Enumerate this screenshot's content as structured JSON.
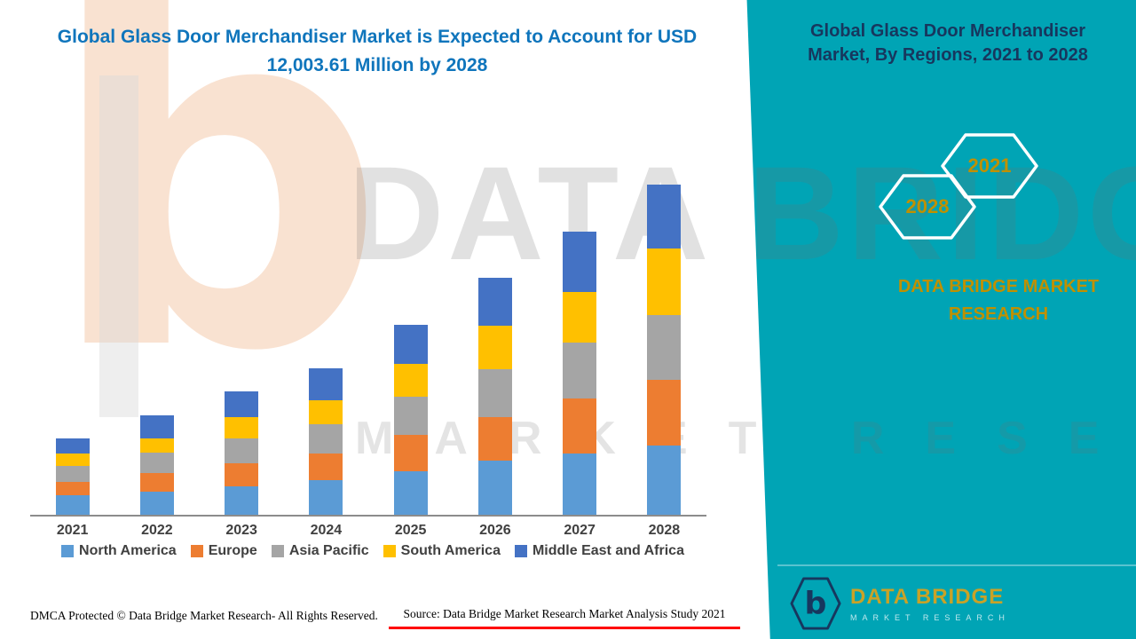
{
  "title": {
    "line1": "Global Glass Door Merchandiser Market is Expected to Account for USD",
    "line2": "12,003.61 Million by 2028"
  },
  "right_panel": {
    "heading": "Global Glass Door Merchandiser Market, By Regions, 2021 to 2028",
    "badge_years": [
      "2028",
      "2021"
    ],
    "caption": "DATA BRIDGE MARKET RESEARCH",
    "logo": {
      "brand": "DATA BRIDGE",
      "sub": "MARKET RESEARCH",
      "monogram": "b"
    }
  },
  "watermark": {
    "monogram": "b",
    "line1": "DATA BRIDGE",
    "line2": "MARKET RESEARCH"
  },
  "footer": {
    "dmca": "DMCA Protected © Data Bridge Market Research- All Rights Reserved.",
    "source": "Source: Data Bridge Market Research Market Analysis Study 2021"
  },
  "colors": {
    "teal_panel": "#00A4B5",
    "gold_text": "#BF9000",
    "navy_heading": "#17375E",
    "title_blue": "#0F75BC",
    "source_underline_red": "#FF0000"
  },
  "chart_data": {
    "type": "bar",
    "stacked": true,
    "title": "Global Glass Door Merchandiser Market is Expected to Account for USD 12,003.61 Million by 2028",
    "xlabel": "",
    "ylabel": "",
    "legend_position": "bottom",
    "grid": false,
    "value_axis_visible": false,
    "ylim": [
      0,
      400
    ],
    "units": "relative size (estimated from bar pixel heights; no value axis shown)",
    "categories": [
      "2021",
      "2022",
      "2023",
      "2024",
      "2025",
      "2026",
      "2027",
      "2028"
    ],
    "series": [
      {
        "name": "North America",
        "color": "#5B9BD5",
        "values": [
          22,
          27,
          33,
          40,
          50,
          62,
          70,
          80
        ]
      },
      {
        "name": "Europe",
        "color": "#ED7D31",
        "values": [
          16,
          21,
          26,
          30,
          42,
          50,
          64,
          75
        ]
      },
      {
        "name": "Asia Pacific",
        "color": "#A5A5A5",
        "values": [
          18,
          23,
          29,
          34,
          44,
          55,
          64,
          75
        ]
      },
      {
        "name": "South America",
        "color": "#FFC000",
        "values": [
          14,
          17,
          24,
          28,
          38,
          50,
          58,
          76
        ]
      },
      {
        "name": "Middle East and Africa",
        "color": "#4472C4",
        "values": [
          18,
          26,
          30,
          36,
          44,
          55,
          70,
          74
        ]
      }
    ]
  }
}
